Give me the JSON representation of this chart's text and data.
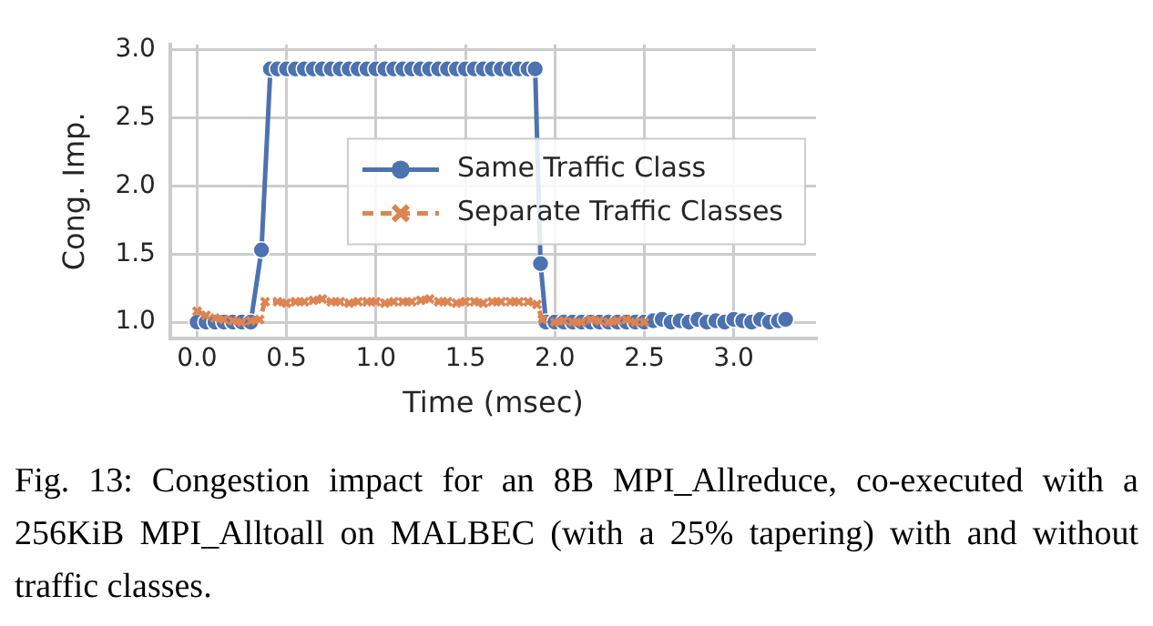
{
  "chart_data": {
    "type": "line",
    "xlabel": "Time (msec)",
    "ylabel": "Cong. Imp.",
    "xlim": [
      -0.15,
      3.46
    ],
    "ylim": [
      0.88,
      3.04
    ],
    "xticks": [
      {
        "value": 0,
        "label": "0.0"
      },
      {
        "value": 0.5,
        "label": "0.5"
      },
      {
        "value": 1,
        "label": "1.0"
      },
      {
        "value": 1.5,
        "label": "1.5"
      },
      {
        "value": 2,
        "label": "2.0"
      },
      {
        "value": 2.5,
        "label": "2.5"
      },
      {
        "value": 3,
        "label": "3.0"
      }
    ],
    "yticks": [
      {
        "value": 1,
        "label": "1.0"
      },
      {
        "value": 1.5,
        "label": "1.5"
      },
      {
        "value": 2,
        "label": "2.0"
      },
      {
        "value": 2.5,
        "label": "2.5"
      },
      {
        "value": 3,
        "label": "3.0"
      }
    ],
    "grid": true,
    "legend": "right",
    "series": [
      {
        "name": "Same Traffic Class",
        "color": "#4c72b0",
        "marker": "circle",
        "line_style": "solid",
        "x": [
          0,
          0.05,
          0.1,
          0.15,
          0.2,
          0.25,
          0.3,
          0.36,
          0.41,
          0.45,
          0.5,
          0.55,
          0.6,
          0.65,
          0.7,
          0.75,
          0.8,
          0.85,
          0.9,
          0.95,
          1.0,
          1.05,
          1.1,
          1.15,
          1.2,
          1.25,
          1.3,
          1.35,
          1.4,
          1.45,
          1.5,
          1.55,
          1.6,
          1.65,
          1.7,
          1.75,
          1.8,
          1.85,
          1.89,
          1.92,
          1.95,
          2.0,
          2.05,
          2.1,
          2.15,
          2.2,
          2.25,
          2.3,
          2.35,
          2.4,
          2.45,
          2.5,
          2.55,
          2.6,
          2.65,
          2.7,
          2.75,
          2.8,
          2.85,
          2.9,
          2.95,
          3.0,
          3.05,
          3.1,
          3.15,
          3.2,
          3.25,
          3.29
        ],
        "values": [
          1.0,
          1.0,
          1.0,
          1.0,
          1.0,
          1.0,
          1.0,
          1.53,
          2.86,
          2.86,
          2.86,
          2.86,
          2.86,
          2.86,
          2.86,
          2.86,
          2.86,
          2.86,
          2.86,
          2.86,
          2.86,
          2.86,
          2.86,
          2.86,
          2.86,
          2.86,
          2.86,
          2.86,
          2.86,
          2.86,
          2.86,
          2.86,
          2.86,
          2.86,
          2.86,
          2.86,
          2.86,
          2.86,
          2.86,
          1.43,
          1.0,
          1.0,
          1.0,
          1.0,
          1.0,
          1.0,
          1.0,
          1.0,
          1.0,
          1.0,
          1.0,
          1.0,
          1.01,
          1.02,
          1.0,
          1.01,
          1.0,
          1.02,
          1.0,
          1.01,
          1.0,
          1.02,
          1.01,
          1.0,
          1.02,
          1.0,
          1.01,
          1.02
        ]
      },
      {
        "name": "Separate Traffic Classes",
        "color": "#dd8452",
        "marker": "cross",
        "line_style": "dashed",
        "x": [
          0,
          0.05,
          0.1,
          0.15,
          0.2,
          0.25,
          0.3,
          0.35,
          0.38,
          0.45,
          0.5,
          0.55,
          0.6,
          0.65,
          0.7,
          0.75,
          0.8,
          0.85,
          0.9,
          0.95,
          1.0,
          1.05,
          1.1,
          1.15,
          1.2,
          1.25,
          1.3,
          1.35,
          1.4,
          1.45,
          1.5,
          1.55,
          1.6,
          1.65,
          1.7,
          1.75,
          1.8,
          1.85,
          1.9,
          1.93,
          2.0,
          2.05,
          2.1,
          2.15,
          2.2,
          2.25,
          2.3,
          2.35,
          2.4,
          2.45,
          2.5
        ],
        "values": [
          1.08,
          1.05,
          1.03,
          1.02,
          1.01,
          1.0,
          1.01,
          1.02,
          1.15,
          1.15,
          1.14,
          1.15,
          1.15,
          1.16,
          1.17,
          1.15,
          1.15,
          1.14,
          1.15,
          1.15,
          1.15,
          1.14,
          1.15,
          1.15,
          1.15,
          1.16,
          1.17,
          1.15,
          1.15,
          1.14,
          1.15,
          1.15,
          1.14,
          1.15,
          1.15,
          1.15,
          1.15,
          1.15,
          1.13,
          1.02,
          1.0,
          1.01,
          1.0,
          1.0,
          1.02,
          1.01,
          1.0,
          1.01,
          1.02,
          1.0,
          1.0
        ]
      }
    ],
    "annotations": [
      "Fig. 13: Congestion impact for an 8B MPI_Allreduce, co-executed with a 256KiB MPI_Alltoall on MALBEC (with a 25% tapering) with and without traffic classes."
    ]
  }
}
